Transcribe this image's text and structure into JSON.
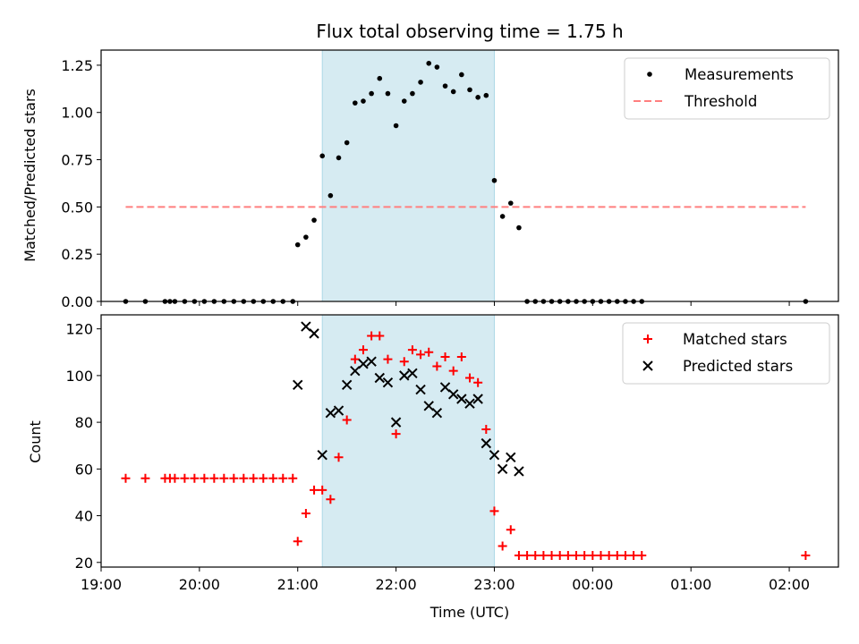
{
  "chart_data": [
    {
      "id": "ratio",
      "type": "scatter",
      "title": "Flux total observing time = 1.75 h",
      "xlabel": "",
      "ylabel": "Matched/Predicted stars",
      "xlim": [
        "19:00",
        "02:30"
      ],
      "ylim": [
        0,
        1.33
      ],
      "yticks": [
        "0.00",
        "0.25",
        "0.50",
        "0.75",
        "1.00",
        "1.25"
      ],
      "shaded_span": {
        "from": "21:15",
        "to": "23:00",
        "color": "#add8e6"
      },
      "legend": {
        "position": "top-right",
        "entries": [
          "Measurements",
          "Threshold"
        ]
      },
      "series": [
        {
          "name": "Measurements",
          "marker": "dot",
          "color": "#000000",
          "x": [
            "19:15",
            "19:27",
            "19:39",
            "19:42",
            "19:45",
            "19:51",
            "19:57",
            "20:03",
            "20:09",
            "20:15",
            "20:21",
            "20:27",
            "20:33",
            "20:39",
            "20:45",
            "20:51",
            "20:57",
            "21:00",
            "21:05",
            "21:10",
            "21:15",
            "21:20",
            "21:25",
            "21:30",
            "21:35",
            "21:40",
            "21:45",
            "21:50",
            "21:55",
            "22:00",
            "22:05",
            "22:10",
            "22:15",
            "22:20",
            "22:25",
            "22:30",
            "22:35",
            "22:40",
            "22:45",
            "22:50",
            "22:55",
            "23:00",
            "23:05",
            "23:10",
            "23:15",
            "23:20",
            "23:25",
            "23:30",
            "23:35",
            "23:40",
            "23:45",
            "23:50",
            "23:55",
            "00:00",
            "00:05",
            "00:10",
            "00:15",
            "00:20",
            "00:25",
            "00:30",
            "02:10"
          ],
          "y": [
            0,
            0,
            0,
            0,
            0,
            0,
            0,
            0,
            0,
            0,
            0,
            0,
            0,
            0,
            0,
            0,
            0,
            0.3,
            0.34,
            0.43,
            0.77,
            0.56,
            0.76,
            0.84,
            1.05,
            1.06,
            1.1,
            1.18,
            1.1,
            0.93,
            1.06,
            1.1,
            1.16,
            1.26,
            1.24,
            1.14,
            1.11,
            1.2,
            1.12,
            1.08,
            1.09,
            0.64,
            0.45,
            0.52,
            0.39,
            0,
            0,
            0,
            0,
            0,
            0,
            0,
            0,
            0,
            0,
            0,
            0,
            0,
            0,
            0,
            0
          ]
        },
        {
          "name": "Threshold",
          "style": "dashed",
          "color": "#ff7f7f",
          "x": [
            "19:15",
            "02:10"
          ],
          "y": [
            0.5,
            0.5
          ]
        }
      ]
    },
    {
      "id": "counts",
      "type": "scatter",
      "title": "",
      "xlabel": "Time (UTC)",
      "ylabel": "Count",
      "xlim": [
        "19:00",
        "02:30"
      ],
      "ylim": [
        18,
        126
      ],
      "yticks": [
        "20",
        "40",
        "60",
        "80",
        "100",
        "120"
      ],
      "xticks": [
        "19:00",
        "20:00",
        "21:00",
        "22:00",
        "23:00",
        "00:00",
        "01:00",
        "02:00"
      ],
      "shaded_span": {
        "from": "21:15",
        "to": "23:00",
        "color": "#add8e6"
      },
      "legend": {
        "position": "top-right",
        "entries": [
          "Matched stars",
          "Predicted stars"
        ]
      },
      "series": [
        {
          "name": "Matched stars",
          "marker": "plus",
          "color": "#ff0000",
          "x": [
            "19:15",
            "19:27",
            "19:39",
            "19:42",
            "19:45",
            "19:51",
            "19:57",
            "20:03",
            "20:09",
            "20:15",
            "20:21",
            "20:27",
            "20:33",
            "20:39",
            "20:45",
            "20:51",
            "20:57",
            "21:00",
            "21:05",
            "21:10",
            "21:15",
            "21:20",
            "21:25",
            "21:30",
            "21:35",
            "21:40",
            "21:45",
            "21:50",
            "21:55",
            "22:00",
            "22:05",
            "22:10",
            "22:15",
            "22:20",
            "22:25",
            "22:30",
            "22:35",
            "22:40",
            "22:45",
            "22:50",
            "22:55",
            "23:00",
            "23:05",
            "23:10",
            "23:15",
            "23:20",
            "23:25",
            "23:30",
            "23:35",
            "23:40",
            "23:45",
            "23:50",
            "23:55",
            "00:00",
            "00:05",
            "00:10",
            "00:15",
            "00:20",
            "00:25",
            "00:30",
            "02:10"
          ],
          "y": [
            56,
            56,
            56,
            56,
            56,
            56,
            56,
            56,
            56,
            56,
            56,
            56,
            56,
            56,
            56,
            56,
            56,
            29,
            41,
            51,
            51,
            47,
            65,
            81,
            107,
            111,
            117,
            117,
            107,
            75,
            106,
            111,
            109,
            110,
            104,
            108,
            102,
            108,
            99,
            97,
            77,
            42,
            27,
            34,
            23,
            23,
            23,
            23,
            23,
            23,
            23,
            23,
            23,
            23,
            23,
            23,
            23,
            23,
            23,
            23,
            23
          ]
        },
        {
          "name": "Predicted stars",
          "marker": "x",
          "color": "#000000",
          "x": [
            "21:00",
            "21:05",
            "21:10",
            "21:15",
            "21:20",
            "21:25",
            "21:30",
            "21:35",
            "21:40",
            "21:45",
            "21:50",
            "21:55",
            "22:00",
            "22:05",
            "22:10",
            "22:15",
            "22:20",
            "22:25",
            "22:30",
            "22:35",
            "22:40",
            "22:45",
            "22:50",
            "22:55",
            "23:00",
            "23:05",
            "23:10",
            "23:15"
          ],
          "y": [
            96,
            121,
            118,
            66,
            84,
            85,
            96,
            102,
            105,
            106,
            99,
            97,
            80,
            100,
            101,
            94,
            87,
            84,
            95,
            92,
            90,
            88,
            90,
            71,
            66,
            60,
            65,
            59
          ]
        }
      ]
    }
  ]
}
